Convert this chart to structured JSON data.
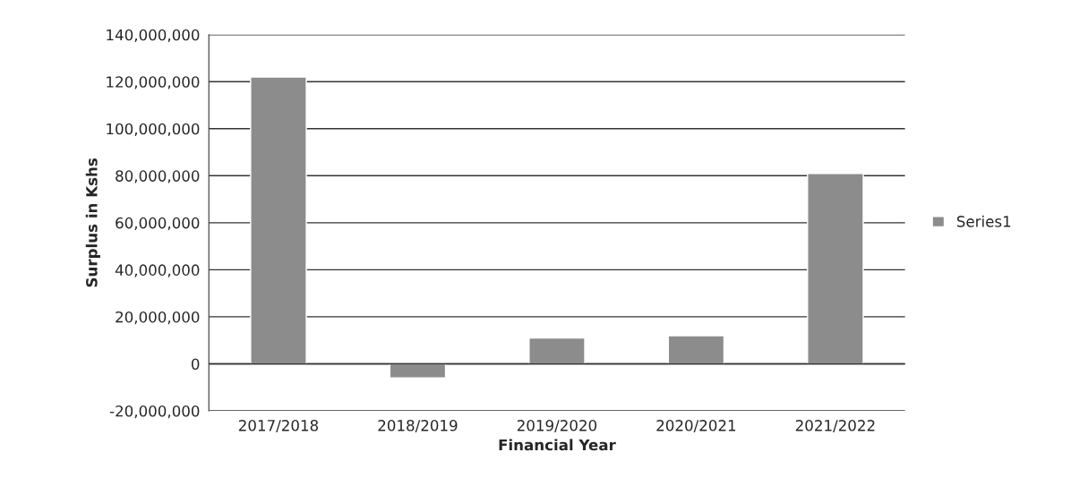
{
  "chart_data": {
    "type": "bar",
    "xlabel": "Financial Year",
    "ylabel": "Surplus in Kshs",
    "categories": [
      "2017/2018",
      "2018/2019",
      "2019/2020",
      "2020/2021",
      "2021/2022"
    ],
    "series": [
      {
        "name": "Series1",
        "color": "#8c8c8c",
        "values": [
          122000000,
          -6000000,
          11000000,
          12000000,
          81000000
        ]
      }
    ],
    "ylim": [
      -20000000,
      140000000
    ],
    "yticks": [
      {
        "value": -20000000,
        "label": "-20,000,000"
      },
      {
        "value": 0,
        "label": "0"
      },
      {
        "value": 20000000,
        "label": "20,000,000"
      },
      {
        "value": 40000000,
        "label": "40,000,000"
      },
      {
        "value": 60000000,
        "label": "60,000,000"
      },
      {
        "value": 80000000,
        "label": "80,000,000"
      },
      {
        "value": 100000000,
        "label": "100,000,000"
      },
      {
        "value": 120000000,
        "label": "120,000,000"
      },
      {
        "value": 140000000,
        "label": "140,000,000"
      }
    ],
    "grid": "y",
    "legend": "right"
  }
}
